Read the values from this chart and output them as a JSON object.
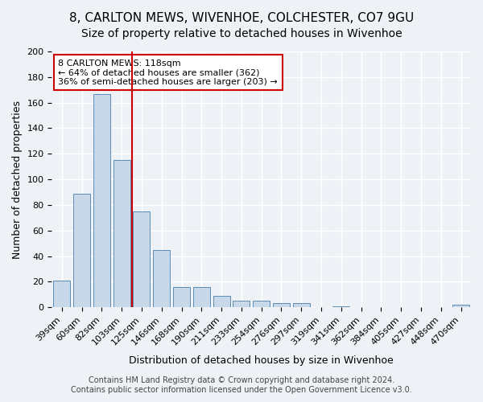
{
  "title": "8, CARLTON MEWS, WIVENHOE, COLCHESTER, CO7 9GU",
  "subtitle": "Size of property relative to detached houses in Wivenhoe",
  "xlabel": "Distribution of detached houses by size in Wivenhoe",
  "ylabel": "Number of detached properties",
  "categories": [
    "39sqm",
    "60sqm",
    "82sqm",
    "103sqm",
    "125sqm",
    "146sqm",
    "168sqm",
    "190sqm",
    "211sqm",
    "233sqm",
    "254sqm",
    "276sqm",
    "297sqm",
    "319sqm",
    "341sqm",
    "362sqm",
    "384sqm",
    "405sqm",
    "427sqm",
    "448sqm",
    "470sqm"
  ],
  "values": [
    21,
    89,
    167,
    115,
    75,
    45,
    16,
    16,
    9,
    5,
    5,
    3,
    3,
    0,
    1,
    0,
    0,
    0,
    0,
    0,
    2
  ],
  "bar_color": "#c8d8e8",
  "bar_edge_color": "#5b8db8",
  "vline_color": "#cc0000",
  "vline_pos": 3.5,
  "ylim": [
    0,
    200
  ],
  "yticks": [
    0,
    20,
    40,
    60,
    80,
    100,
    120,
    140,
    160,
    180,
    200
  ],
  "annotation_title": "8 CARLTON MEWS: 118sqm",
  "annotation_line1": "← 64% of detached houses are smaller (362)",
  "annotation_line2": "36% of semi-detached houses are larger (203) →",
  "annotation_box_color": "#ffffff",
  "annotation_box_edge": "#cc0000",
  "footer_line1": "Contains HM Land Registry data © Crown copyright and database right 2024.",
  "footer_line2": "Contains public sector information licensed under the Open Government Licence v3.0.",
  "background_color": "#eef2f7",
  "grid_color": "#ffffff",
  "title_fontsize": 11,
  "subtitle_fontsize": 10,
  "axis_label_fontsize": 9,
  "tick_fontsize": 8,
  "annotation_fontsize": 8,
  "footer_fontsize": 7
}
